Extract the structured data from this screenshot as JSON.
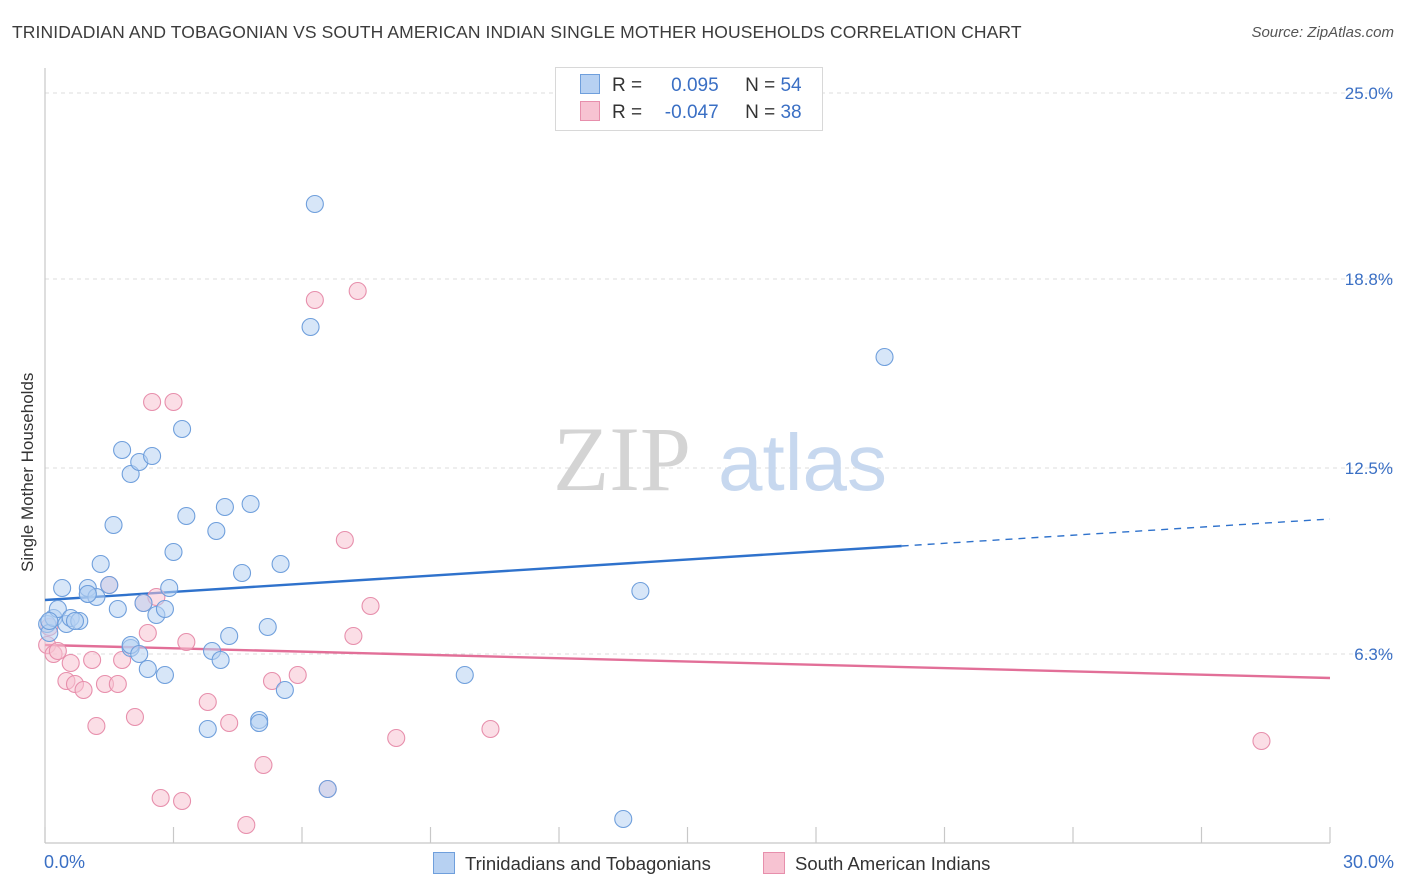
{
  "header": {
    "title": "TRINIDADIAN AND TOBAGONIAN VS SOUTH AMERICAN INDIAN SINGLE MOTHER HOUSEHOLDS CORRELATION CHART",
    "source": "Source: ZipAtlas.com"
  },
  "watermark": {
    "zip": "ZIP",
    "atlas": "atlas"
  },
  "legend": {
    "r_label": "R =",
    "n_label": "N =",
    "series": [
      {
        "r": "0.095",
        "n": "54"
      },
      {
        "r": "-0.047",
        "n": "38"
      }
    ]
  },
  "colors": {
    "blue_fill": "#b7d1f2",
    "blue_stroke": "#6f9fdc",
    "blue_line": "#2f72cc",
    "pink_fill": "#f7c3d2",
    "pink_stroke": "#e78fac",
    "pink_line": "#e26f98",
    "axis_text": "#3a6fc4",
    "grid": "#dcdcdc"
  },
  "chart_data": {
    "type": "scatter",
    "title": "TRINIDADIAN AND TOBAGONIAN VS SOUTH AMERICAN INDIAN SINGLE MOTHER HOUSEHOLDS CORRELATION CHART",
    "xlabel": "",
    "ylabel": "Single Mother Households",
    "xlim": [
      0,
      30
    ],
    "ylim": [
      0,
      25.5
    ],
    "x_tick_labels": [
      "0.0%",
      "30.0%"
    ],
    "y_ticks": [
      6.3,
      12.5,
      18.8,
      25.0
    ],
    "y_tick_labels": [
      "6.3%",
      "12.5%",
      "18.8%",
      "25.0%"
    ],
    "grid": true,
    "legend_position": "top-center",
    "series": [
      {
        "name": "Trinidadians and Tobagonians",
        "color": "#6f9fdc",
        "trend": {
          "x0": 0,
          "y0": 8.1,
          "x1": 30,
          "y1": 10.8,
          "solid_until_x": 20
        },
        "points": [
          [
            0.05,
            7.3
          ],
          [
            0.1,
            7.0
          ],
          [
            0.2,
            7.5
          ],
          [
            0.3,
            7.8
          ],
          [
            0.4,
            8.5
          ],
          [
            0.5,
            7.3
          ],
          [
            0.6,
            7.5
          ],
          [
            0.8,
            7.4
          ],
          [
            1.0,
            8.3
          ],
          [
            1.0,
            8.5
          ],
          [
            1.2,
            8.2
          ],
          [
            1.3,
            9.3
          ],
          [
            1.5,
            8.6
          ],
          [
            1.6,
            10.6
          ],
          [
            1.7,
            7.8
          ],
          [
            1.8,
            13.1
          ],
          [
            2.0,
            6.5
          ],
          [
            2.0,
            6.6
          ],
          [
            2.0,
            12.3
          ],
          [
            2.2,
            6.3
          ],
          [
            2.2,
            12.7
          ],
          [
            2.3,
            8.0
          ],
          [
            2.4,
            5.8
          ],
          [
            2.5,
            12.9
          ],
          [
            2.6,
            7.6
          ],
          [
            2.8,
            5.6
          ],
          [
            2.8,
            7.8
          ],
          [
            2.9,
            8.5
          ],
          [
            3.0,
            9.7
          ],
          [
            3.2,
            13.8
          ],
          [
            3.3,
            10.9
          ],
          [
            3.8,
            3.8
          ],
          [
            3.9,
            6.4
          ],
          [
            4.0,
            10.4
          ],
          [
            4.1,
            6.1
          ],
          [
            4.2,
            11.2
          ],
          [
            4.3,
            6.9
          ],
          [
            4.6,
            9.0
          ],
          [
            4.8,
            11.3
          ],
          [
            5.0,
            4.1
          ],
          [
            5.0,
            4.0
          ],
          [
            5.2,
            7.2
          ],
          [
            5.5,
            9.3
          ],
          [
            5.6,
            5.1
          ],
          [
            6.2,
            17.2
          ],
          [
            6.3,
            21.3
          ],
          [
            6.6,
            1.8
          ],
          [
            9.8,
            5.6
          ],
          [
            13.5,
            0.8
          ],
          [
            13.9,
            8.4
          ],
          [
            19.6,
            16.2
          ],
          [
            0.1,
            7.4
          ],
          [
            0.7,
            7.4
          ],
          [
            1.0,
            8.3
          ]
        ]
      },
      {
        "name": "South American Indians",
        "color": "#e78fac",
        "trend": {
          "x0": 0,
          "y0": 6.6,
          "x1": 30,
          "y1": 5.5
        },
        "points": [
          [
            0.05,
            6.6
          ],
          [
            0.1,
            7.2
          ],
          [
            0.2,
            6.3
          ],
          [
            0.3,
            6.4
          ],
          [
            0.5,
            5.4
          ],
          [
            0.6,
            6.0
          ],
          [
            0.7,
            5.3
          ],
          [
            0.9,
            5.1
          ],
          [
            1.1,
            6.1
          ],
          [
            1.2,
            3.9
          ],
          [
            1.4,
            5.3
          ],
          [
            1.5,
            8.6
          ],
          [
            1.7,
            5.3
          ],
          [
            1.8,
            6.1
          ],
          [
            2.1,
            4.2
          ],
          [
            2.3,
            8.0
          ],
          [
            2.4,
            7.0
          ],
          [
            2.5,
            14.7
          ],
          [
            2.6,
            8.2
          ],
          [
            2.7,
            1.5
          ],
          [
            3.0,
            14.7
          ],
          [
            3.2,
            1.4
          ],
          [
            3.3,
            6.7
          ],
          [
            3.8,
            4.7
          ],
          [
            4.3,
            4.0
          ],
          [
            4.7,
            0.6
          ],
          [
            5.1,
            2.6
          ],
          [
            5.3,
            5.4
          ],
          [
            5.9,
            5.6
          ],
          [
            6.3,
            18.1
          ],
          [
            6.6,
            1.8
          ],
          [
            7.0,
            10.1
          ],
          [
            7.2,
            6.9
          ],
          [
            7.3,
            18.4
          ],
          [
            7.6,
            7.9
          ],
          [
            8.2,
            3.5
          ],
          [
            10.4,
            3.8
          ],
          [
            28.4,
            3.4
          ]
        ]
      }
    ]
  }
}
